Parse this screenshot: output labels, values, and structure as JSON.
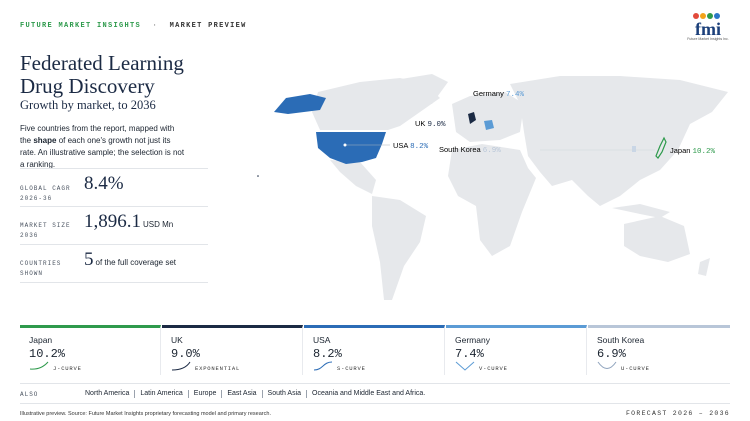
{
  "header": {
    "brand": "FUTURE MARKET INSIGHTS",
    "separator": "·",
    "section": "MARKET PREVIEW",
    "logo": "fmi",
    "logo_caption": "Future Market Insights Inc."
  },
  "title": "Federated Learning Drug Discovery",
  "subtitle": "Growth by market, to 2036",
  "description": [
    "Five countries from the report, mapped with the ",
    "shape",
    " of each one's growth not just its rate. An illustrative sample; the selection is not a ranking."
  ],
  "stats": [
    {
      "label": "GLOBAL CAGR",
      "sublabel": "2026-36",
      "value": "8.4%"
    },
    {
      "label": "MARKET SIZE",
      "sublabel": "2036",
      "value": "1,896.1",
      "unit": "USD Mn"
    },
    {
      "label": "COUNTRIES SHOWN",
      "value": "5",
      "unit": "of the full coverage set"
    }
  ],
  "map_labels": [
    {
      "country": "Germany",
      "value": "7.4%"
    },
    {
      "country": "UK",
      "value": "9.0%"
    },
    {
      "country": "USA",
      "value": "8.2%"
    },
    {
      "country": "South Korea",
      "value": "6.9%"
    },
    {
      "country": "Japan",
      "value": "10.2%"
    }
  ],
  "cards": [
    {
      "country": "Japan",
      "value": "10.2%",
      "shape": "J-CURVE"
    },
    {
      "country": "UK",
      "value": "9.0%",
      "shape": "EXPONENTIAL"
    },
    {
      "country": "USA",
      "value": "8.2%",
      "shape": "S-CURVE"
    },
    {
      "country": "Germany",
      "value": "7.4%",
      "shape": "V-CURVE"
    },
    {
      "country": "South Korea",
      "value": "6.9%",
      "shape": "U-CURVE"
    }
  ],
  "also": {
    "label": "ALSO",
    "regions": [
      "North America",
      "Latin America",
      "Europe",
      "East Asia",
      "South Asia",
      "Oceania and Middle East and Africa."
    ]
  },
  "footer": {
    "note": "Illustrative preview. Source: Future Market Insights proprietary forecasting model and primary research.",
    "forecast": "FORECAST 2026 – 2036"
  }
}
